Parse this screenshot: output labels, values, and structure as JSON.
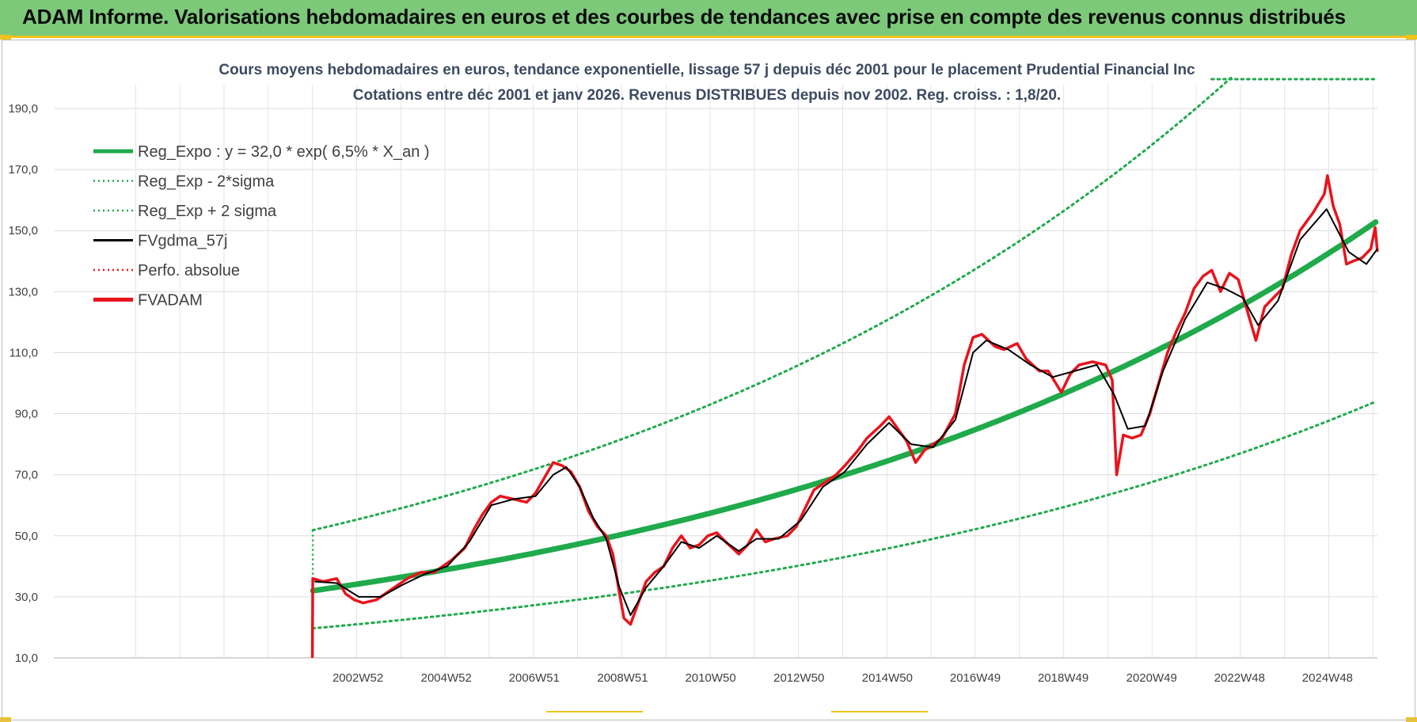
{
  "banner": {
    "title": "ADAM Informe. Valorisations hebdomadaires en euros et des courbes de tendances avec prise en compte des revenus connus distribués"
  },
  "chart_data": {
    "type": "line",
    "title": "Cours moyens hebdomadaires en euros, tendance exponentielle, lissage 57 j depuis déc 2001 pour le placement Prudential Financial Inc",
    "subtitle": "Cotations entre déc 2001 et janv 2026.  Revenus DISTRIBUES depuis nov 2002. Reg. croiss. : 1,8/20.",
    "xlabel": "",
    "ylabel": "",
    "ylim": [
      10,
      190
    ],
    "y_ticks": [
      "10,0",
      "30,0",
      "50,0",
      "70,0",
      "90,0",
      "110,0",
      "130,0",
      "150,0",
      "170,0",
      "190,0"
    ],
    "x_tick_labels": [
      "2002W52",
      "2004W52",
      "2006W51",
      "2008W51",
      "2010W50",
      "2012W50",
      "2014W50",
      "2016W49",
      "2018W49",
      "2020W49",
      "2022W48",
      "2024W48"
    ],
    "x_tick_years": [
      2002.98,
      2004.98,
      2006.97,
      2008.97,
      2010.96,
      2012.96,
      2014.96,
      2016.95,
      2018.94,
      2020.94,
      2022.93,
      2024.92
    ],
    "x_range": [
      1996.1,
      2026.05
    ],
    "grid": true,
    "legend_position": "top-left",
    "legend": [
      {
        "label": "Reg_Expo : y = 32,0 * exp( 6,5% *  X_an )",
        "color": "#1faa4b",
        "style": "thick"
      },
      {
        "label": "Reg_Exp - 2*sigma",
        "color": "#1faa4b",
        "style": "dotted"
      },
      {
        "label": "Reg_Exp + 2 sigma",
        "color": "#1faa4b",
        "style": "dotted"
      },
      {
        "label": "FVgdma_57j",
        "color": "#000000",
        "style": "solid"
      },
      {
        "label": "Perfo. absolue",
        "color": "#e8141c",
        "style": "dotted"
      },
      {
        "label": "FVADAM",
        "color": "#e8141c",
        "style": "thick"
      }
    ],
    "regression": {
      "start_year": 2001.96,
      "end_year": 2026.05,
      "base": 32.0,
      "rate": 0.065,
      "upper_factor": 1.62,
      "lower_factor": 0.615
    },
    "series": [
      {
        "name": "FVADAM",
        "color": "#e8141c",
        "points": [
          [
            2001.95,
            10
          ],
          [
            2001.96,
            36
          ],
          [
            2002.2,
            35
          ],
          [
            2002.5,
            36
          ],
          [
            2002.7,
            31
          ],
          [
            2002.9,
            29
          ],
          [
            2003.1,
            28
          ],
          [
            2003.4,
            29
          ],
          [
            2003.6,
            31
          ],
          [
            2003.9,
            34
          ],
          [
            2004.1,
            36
          ],
          [
            2004.4,
            38
          ],
          [
            2004.7,
            38
          ],
          [
            2004.9,
            40
          ],
          [
            2005.1,
            42
          ],
          [
            2005.4,
            46
          ],
          [
            2005.6,
            52
          ],
          [
            2005.8,
            57
          ],
          [
            2006.0,
            61
          ],
          [
            2006.2,
            63
          ],
          [
            2006.5,
            62
          ],
          [
            2006.8,
            61
          ],
          [
            2007.0,
            64
          ],
          [
            2007.2,
            69
          ],
          [
            2007.4,
            74
          ],
          [
            2007.6,
            73
          ],
          [
            2007.8,
            71
          ],
          [
            2008.0,
            66
          ],
          [
            2008.2,
            58
          ],
          [
            2008.4,
            53
          ],
          [
            2008.6,
            50
          ],
          [
            2008.75,
            44
          ],
          [
            2008.9,
            31
          ],
          [
            2009.0,
            23
          ],
          [
            2009.15,
            21
          ],
          [
            2009.3,
            27
          ],
          [
            2009.5,
            35
          ],
          [
            2009.7,
            38
          ],
          [
            2009.9,
            40
          ],
          [
            2010.1,
            46
          ],
          [
            2010.3,
            50
          ],
          [
            2010.5,
            46
          ],
          [
            2010.7,
            47
          ],
          [
            2010.9,
            50
          ],
          [
            2011.1,
            51
          ],
          [
            2011.3,
            48
          ],
          [
            2011.6,
            44
          ],
          [
            2011.8,
            47
          ],
          [
            2012.0,
            52
          ],
          [
            2012.2,
            48
          ],
          [
            2012.4,
            49
          ],
          [
            2012.7,
            50
          ],
          [
            2012.9,
            53
          ],
          [
            2013.1,
            59
          ],
          [
            2013.3,
            65
          ],
          [
            2013.6,
            68
          ],
          [
            2013.8,
            70
          ],
          [
            2014.0,
            73
          ],
          [
            2014.3,
            78
          ],
          [
            2014.5,
            82
          ],
          [
            2014.8,
            86
          ],
          [
            2015.0,
            89
          ],
          [
            2015.2,
            85
          ],
          [
            2015.4,
            81
          ],
          [
            2015.6,
            74
          ],
          [
            2015.8,
            78
          ],
          [
            2016.0,
            80
          ],
          [
            2016.2,
            82
          ],
          [
            2016.5,
            90
          ],
          [
            2016.7,
            106
          ],
          [
            2016.9,
            115
          ],
          [
            2017.1,
            116
          ],
          [
            2017.4,
            112
          ],
          [
            2017.6,
            111
          ],
          [
            2017.9,
            113
          ],
          [
            2018.1,
            108
          ],
          [
            2018.4,
            104
          ],
          [
            2018.6,
            104
          ],
          [
            2018.9,
            97
          ],
          [
            2019.1,
            103
          ],
          [
            2019.3,
            106
          ],
          [
            2019.6,
            107
          ],
          [
            2019.9,
            106
          ],
          [
            2020.05,
            101
          ],
          [
            2020.15,
            70
          ],
          [
            2020.3,
            83
          ],
          [
            2020.5,
            82
          ],
          [
            2020.7,
            83
          ],
          [
            2020.9,
            90
          ],
          [
            2021.1,
            100
          ],
          [
            2021.3,
            110
          ],
          [
            2021.5,
            117
          ],
          [
            2021.7,
            123
          ],
          [
            2021.9,
            131
          ],
          [
            2022.1,
            135
          ],
          [
            2022.3,
            137
          ],
          [
            2022.5,
            130
          ],
          [
            2022.7,
            136
          ],
          [
            2022.9,
            134
          ],
          [
            2023.1,
            124
          ],
          [
            2023.3,
            114
          ],
          [
            2023.5,
            125
          ],
          [
            2023.7,
            128
          ],
          [
            2023.9,
            131
          ],
          [
            2024.1,
            142
          ],
          [
            2024.3,
            150
          ],
          [
            2024.6,
            156
          ],
          [
            2024.85,
            162
          ],
          [
            2024.92,
            168
          ],
          [
            2025.05,
            158
          ],
          [
            2025.2,
            152
          ],
          [
            2025.35,
            139
          ],
          [
            2025.5,
            140
          ],
          [
            2025.7,
            141
          ],
          [
            2025.9,
            144
          ],
          [
            2026.0,
            151
          ],
          [
            2026.05,
            143
          ]
        ]
      },
      {
        "name": "FVgdma_57j",
        "color": "#000000",
        "points": [
          [
            2002.0,
            35
          ],
          [
            2002.5,
            34.5
          ],
          [
            2003.0,
            30
          ],
          [
            2003.5,
            30
          ],
          [
            2004.0,
            34
          ],
          [
            2004.5,
            37.5
          ],
          [
            2005.0,
            40
          ],
          [
            2005.5,
            48
          ],
          [
            2006.0,
            60
          ],
          [
            2006.5,
            62
          ],
          [
            2007.0,
            63
          ],
          [
            2007.4,
            70
          ],
          [
            2007.7,
            72.5
          ],
          [
            2008.0,
            66
          ],
          [
            2008.3,
            56
          ],
          [
            2008.6,
            49
          ],
          [
            2008.9,
            33
          ],
          [
            2009.15,
            24
          ],
          [
            2009.5,
            33
          ],
          [
            2009.9,
            40
          ],
          [
            2010.3,
            48
          ],
          [
            2010.7,
            46
          ],
          [
            2011.1,
            50
          ],
          [
            2011.6,
            45
          ],
          [
            2012.0,
            49
          ],
          [
            2012.5,
            49
          ],
          [
            2013.0,
            55
          ],
          [
            2013.5,
            66
          ],
          [
            2014.0,
            71
          ],
          [
            2014.5,
            80
          ],
          [
            2015.0,
            87
          ],
          [
            2015.5,
            80
          ],
          [
            2016.0,
            79
          ],
          [
            2016.5,
            88
          ],
          [
            2016.9,
            110
          ],
          [
            2017.2,
            114
          ],
          [
            2017.7,
            111
          ],
          [
            2018.2,
            106
          ],
          [
            2018.7,
            102
          ],
          [
            2019.2,
            104
          ],
          [
            2019.7,
            106
          ],
          [
            2020.1,
            96
          ],
          [
            2020.4,
            85
          ],
          [
            2020.8,
            86
          ],
          [
            2021.2,
            104
          ],
          [
            2021.7,
            121
          ],
          [
            2022.2,
            133
          ],
          [
            2022.6,
            131
          ],
          [
            2023.0,
            128
          ],
          [
            2023.35,
            119
          ],
          [
            2023.8,
            127
          ],
          [
            2024.3,
            147
          ],
          [
            2024.9,
            157
          ],
          [
            2025.4,
            143
          ],
          [
            2025.8,
            139
          ],
          [
            2026.05,
            144
          ]
        ]
      }
    ]
  }
}
